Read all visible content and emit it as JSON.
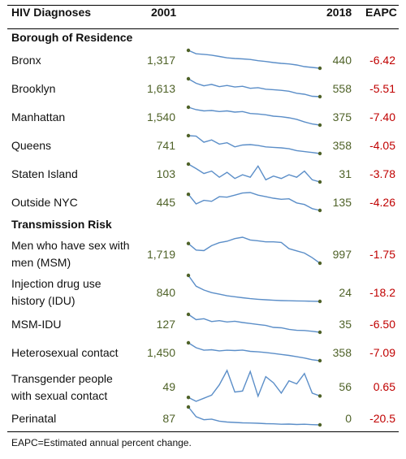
{
  "header": {
    "title": "HIV Diagnoses",
    "col_2001": "2001",
    "col_2018": "2018",
    "col_eapc": "EAPC"
  },
  "footnote": "EAPC=Estimated annual percent change.",
  "colors": {
    "line": "#5b8ec8",
    "dot": "#4f6228",
    "value": "#4f6228",
    "eapc": "#c00000"
  },
  "chart_data": {
    "type": "table",
    "x_years": [
      2001,
      2002,
      2003,
      2004,
      2005,
      2006,
      2007,
      2008,
      2009,
      2010,
      2011,
      2012,
      2013,
      2014,
      2015,
      2016,
      2017,
      2018
    ],
    "sections": [
      {
        "title": "Borough of Residence",
        "rows": [
          {
            "label": "Bronx",
            "v2001": "1,317",
            "v2018": "440",
            "eapc": "-6.42",
            "series": [
              1317,
              1150,
              1120,
              1080,
              1020,
              950,
              920,
              900,
              870,
              810,
              770,
              720,
              680,
              650,
              600,
              520,
              480,
              440
            ]
          },
          {
            "label": "Brooklyn",
            "v2001": "1,613",
            "v2018": "558",
            "eapc": "-5.51",
            "series": [
              1613,
              1350,
              1200,
              1280,
              1150,
              1220,
              1130,
              1170,
              1050,
              1090,
              1000,
              970,
              930,
              880,
              760,
              700,
              580,
              558
            ]
          },
          {
            "label": "Manhattan",
            "v2001": "1,540",
            "v2018": "375",
            "eapc": "-7.40",
            "series": [
              1540,
              1380,
              1300,
              1330,
              1260,
              1300,
              1220,
              1260,
              1130,
              1100,
              1050,
              960,
              920,
              850,
              750,
              580,
              450,
              375
            ]
          },
          {
            "label": "Queens",
            "v2001": "741",
            "v2018": "358",
            "eapc": "-4.05",
            "series": [
              741,
              730,
              600,
              650,
              560,
              590,
              500,
              540,
              550,
              530,
              500,
              490,
              480,
              460,
              420,
              400,
              380,
              358
            ]
          },
          {
            "label": "Staten Island",
            "v2001": "103",
            "v2018": "31",
            "eapc": "-3.78",
            "series": [
              103,
              85,
              65,
              75,
              50,
              70,
              45,
              60,
              50,
              95,
              40,
              55,
              45,
              60,
              50,
              75,
              40,
              31
            ]
          },
          {
            "label": "Outside NYC",
            "v2001": "445",
            "v2018": "135",
            "eapc": "-4.26",
            "series": [
              445,
              260,
              330,
              310,
              400,
              390,
              430,
              470,
              480,
              430,
              400,
              370,
              350,
              360,
              280,
              250,
              170,
              135
            ]
          }
        ]
      },
      {
        "title": "Transmission Risk",
        "rows": [
          {
            "label": "Men who have sex with\nmen (MSM)",
            "v2001": "1,719",
            "v2018": "997",
            "eapc": "-1.75",
            "series": [
              1719,
              1480,
              1460,
              1640,
              1750,
              1800,
              1900,
              1950,
              1850,
              1820,
              1780,
              1780,
              1760,
              1530,
              1450,
              1370,
              1200,
              997
            ]
          },
          {
            "label": "Injection drug use\nhistory (IDU)",
            "v2001": "840",
            "v2018": "24",
            "eapc": "-18.2",
            "series": [
              840,
              500,
              380,
              300,
              250,
              200,
              170,
              140,
              110,
              90,
              75,
              60,
              50,
              45,
              40,
              35,
              30,
              24
            ]
          },
          {
            "label": "MSM-IDU",
            "v2001": "127",
            "v2018": "35",
            "eapc": "-6.50",
            "series": [
              127,
              100,
              105,
              90,
              95,
              88,
              92,
              85,
              80,
              75,
              70,
              60,
              58,
              50,
              45,
              44,
              40,
              35
            ]
          },
          {
            "label": "Heterosexual contact",
            "v2001": "1,450",
            "v2018": "358",
            "eapc": "-7.09",
            "series": [
              1450,
              1150,
              1000,
              1030,
              960,
              1000,
              980,
              1010,
              930,
              900,
              860,
              800,
              740,
              680,
              600,
              520,
              420,
              358
            ]
          },
          {
            "label": "Transgender people\nwith sexual contact",
            "v2001": "49",
            "v2018": "56",
            "eapc": "0.65",
            "series": [
              49,
              30,
              45,
              60,
              110,
              180,
              75,
              80,
              175,
              55,
              150,
              120,
              70,
              130,
              115,
              165,
              70,
              56
            ]
          },
          {
            "label": "Perinatal",
            "v2001": "87",
            "v2018": "0",
            "eapc": "-20.5",
            "series": [
              87,
              40,
              25,
              28,
              18,
              14,
              12,
              10,
              9,
              8,
              6,
              5,
              3,
              4,
              2,
              3,
              1,
              0
            ]
          }
        ]
      }
    ]
  }
}
